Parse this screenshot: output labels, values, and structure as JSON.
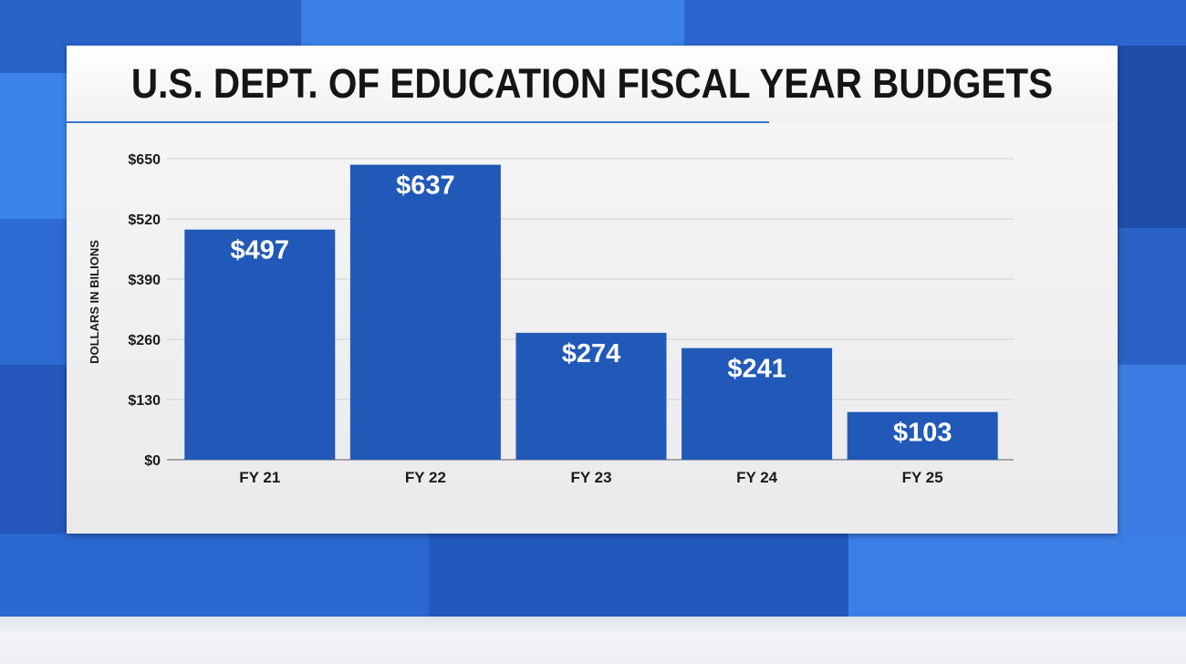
{
  "colors": {
    "bar": "#2159b8",
    "bar_label": "#ffffff",
    "axis_text": "#1a1a1a",
    "grid": "#cfcfd4",
    "background_blue": "#2f6fd6"
  },
  "chart_data": {
    "type": "bar",
    "title": "U.S. DEPT. OF EDUCATION FISCAL YEAR BUDGETS",
    "ylabel": "DOLLARS IN BILIONS",
    "xlabel": "",
    "categories": [
      "FY 21",
      "FY 22",
      "FY 23",
      "FY 24",
      "FY 25"
    ],
    "values": [
      497,
      637,
      274,
      241,
      103
    ],
    "data_labels": [
      "$497",
      "$637",
      "$274",
      "$241",
      "$103"
    ],
    "ylim": [
      0,
      650
    ],
    "yticks": [
      0,
      130,
      260,
      390,
      520,
      650
    ],
    "ytick_labels": [
      "$0",
      "$130",
      "$260",
      "$390",
      "$520",
      "$650"
    ],
    "grid": true,
    "legend": "none"
  }
}
